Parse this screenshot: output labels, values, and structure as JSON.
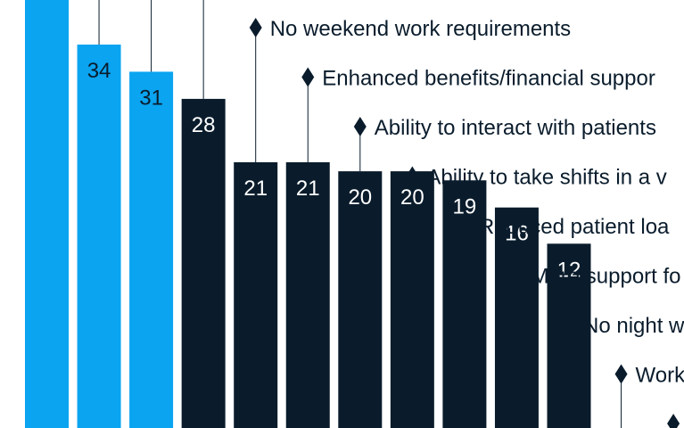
{
  "chart_data": {
    "type": "bar",
    "title": "",
    "xlabel": "",
    "ylabel": "",
    "bars": [
      {
        "value": null,
        "label": "",
        "highlight": true
      },
      {
        "value": 34,
        "label": "",
        "highlight": true
      },
      {
        "value": 31,
        "label": "",
        "highlight": true
      },
      {
        "value": 28,
        "label": "",
        "highlight": false
      },
      {
        "value": 21,
        "label": "No weekend work requirements",
        "highlight": false
      },
      {
        "value": 21,
        "label": "Enhanced benefits/financial suppor",
        "highlight": false
      },
      {
        "value": 20,
        "label": "Ability to interact with patients",
        "highlight": false
      },
      {
        "value": 20,
        "label": "Ability to take shifts in a v",
        "highlight": false
      },
      {
        "value": 19,
        "label": "Reduced patient loa",
        "highlight": false
      },
      {
        "value": 16,
        "label": "More support fo",
        "highlight": false
      },
      {
        "value": 12,
        "label": "No night w",
        "highlight": false
      },
      {
        "value": null,
        "label": "Work",
        "highlight": false
      },
      {
        "value": null,
        "label": "",
        "highlight": false
      }
    ],
    "colors": {
      "highlight": "#0aa4f0",
      "standard": "#0a1c2c",
      "background": "#ffffff"
    }
  }
}
